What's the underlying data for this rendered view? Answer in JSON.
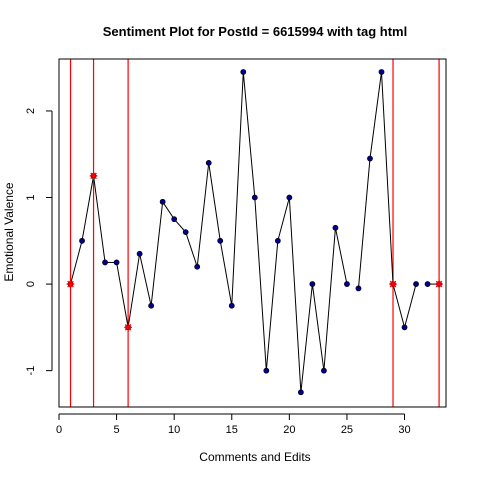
{
  "chart_data": {
    "type": "line",
    "title": "Sentiment Plot for PostId =  6615994  with tag  html",
    "xlabel": "Comments and Edits",
    "ylabel": "Emotional Valence",
    "xlim": [
      0.0,
      33.6
    ],
    "ylim": [
      -1.42,
      2.6
    ],
    "x_ticks": [
      0,
      5,
      10,
      15,
      20,
      25,
      30
    ],
    "y_ticks": [
      -1,
      0,
      1,
      2
    ],
    "x_tick_labels": [
      "0",
      "5",
      "10",
      "15",
      "20",
      "25",
      "30"
    ],
    "y_tick_labels": [
      "-1",
      "0",
      "1",
      "2"
    ],
    "grid": false,
    "series": [
      {
        "x": [
          1,
          2,
          3,
          4,
          5,
          6,
          7,
          8,
          9,
          10,
          11,
          12,
          13,
          14,
          15,
          16,
          17,
          18,
          19,
          20,
          21,
          22,
          23,
          24,
          25,
          26,
          27,
          28,
          29,
          30,
          31,
          32,
          33
        ],
        "y": [
          0,
          0.5,
          1.25,
          0.25,
          0.25,
          -0.5,
          0.35,
          -0.25,
          0.95,
          0.75,
          0.6,
          0.2,
          1.4,
          0.5,
          -0.25,
          2.45,
          1.0,
          -1.0,
          0.5,
          1.0,
          -1.25,
          0,
          -1.0,
          0.65,
          0,
          -0.05,
          1.45,
          2.45,
          0,
          -0.5,
          0,
          0,
          0
        ]
      }
    ],
    "line_breaks_after_x": [
      25,
      31
    ],
    "line_color": "#000000",
    "marker_color": "#00008b",
    "vlines": [
      1,
      3,
      6,
      29,
      33
    ],
    "vline_color": "#ff0000",
    "highlight_points": [
      {
        "x": 1,
        "y": 0
      },
      {
        "x": 3,
        "y": 1.25
      },
      {
        "x": 6,
        "y": -0.5
      },
      {
        "x": 29,
        "y": 0
      },
      {
        "x": 33,
        "y": 0
      }
    ],
    "highlight_color": "#ff0000"
  }
}
